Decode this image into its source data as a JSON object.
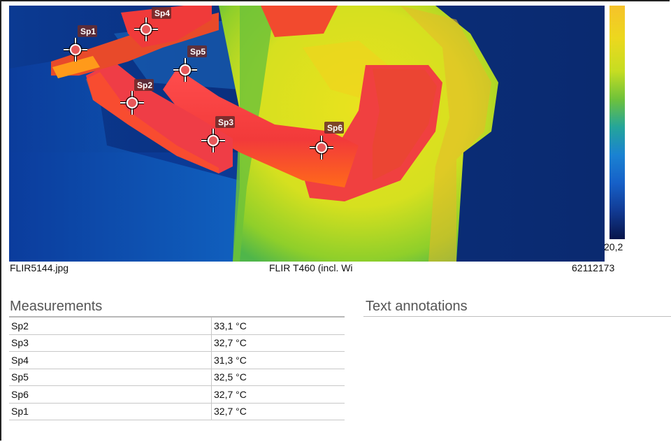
{
  "image": {
    "filename": "FLIR5144.jpg",
    "camera": "FLIR T460 (incl. Wi",
    "serial": "62112173",
    "scale_min_label": "20,2",
    "palette_colors": [
      "#f6c22a",
      "#ecd81e",
      "#c6dd22",
      "#6fc23a",
      "#24a59a",
      "#1a82d2",
      "#1660c8",
      "#113a93",
      "#08154a"
    ],
    "spots": [
      {
        "id": "sp4",
        "label": "Sp4"
      },
      {
        "id": "sp1",
        "label": "Sp1"
      },
      {
        "id": "sp5",
        "label": "Sp5"
      },
      {
        "id": "sp2",
        "label": "Sp2"
      },
      {
        "id": "sp3",
        "label": "Sp3"
      },
      {
        "id": "sp6",
        "label": "Sp6"
      }
    ]
  },
  "measurements": {
    "title": "Measurements",
    "rows": [
      {
        "name": "Sp2",
        "value": "33,1 °C"
      },
      {
        "name": "Sp3",
        "value": "32,7 °C"
      },
      {
        "name": "Sp4",
        "value": "31,3 °C"
      },
      {
        "name": "Sp5",
        "value": "32,5 °C"
      },
      {
        "name": "Sp6",
        "value": "32,7 °C"
      },
      {
        "name": "Sp1",
        "value": "32,7 °C"
      }
    ]
  },
  "text_annotations": {
    "title": "Text annotations"
  }
}
